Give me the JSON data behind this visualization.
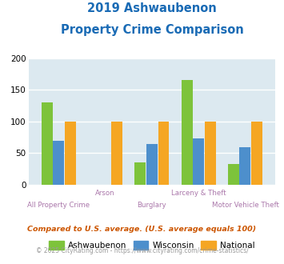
{
  "title_line1": "2019 Ashwaubenon",
  "title_line2": "Property Crime Comparison",
  "categories": [
    "All Property Crime",
    "Arson",
    "Burglary",
    "Larceny & Theft",
    "Motor Vehicle Theft"
  ],
  "ashwaubenon": [
    130,
    0,
    35,
    165,
    33
  ],
  "wisconsin": [
    70,
    0,
    65,
    73,
    59
  ],
  "national": [
    100,
    100,
    100,
    100,
    100
  ],
  "color_ash": "#7dc33b",
  "color_wis": "#4d8fcc",
  "color_nat": "#f5a623",
  "ylim": [
    0,
    200
  ],
  "yticks": [
    0,
    50,
    100,
    150,
    200
  ],
  "background_plot": "#dce9f0",
  "background_fig": "#ffffff",
  "title_color": "#1a6bb5",
  "xlabel_color": "#aa77aa",
  "footer1": "Compared to U.S. average. (U.S. average equals 100)",
  "footer2": "© 2025 CityRating.com - https://www.cityrating.com/crime-statistics/",
  "legend_labels": [
    "Ashwaubenon",
    "Wisconsin",
    "National"
  ],
  "footer1_color": "#cc5500",
  "footer2_color": "#999999"
}
